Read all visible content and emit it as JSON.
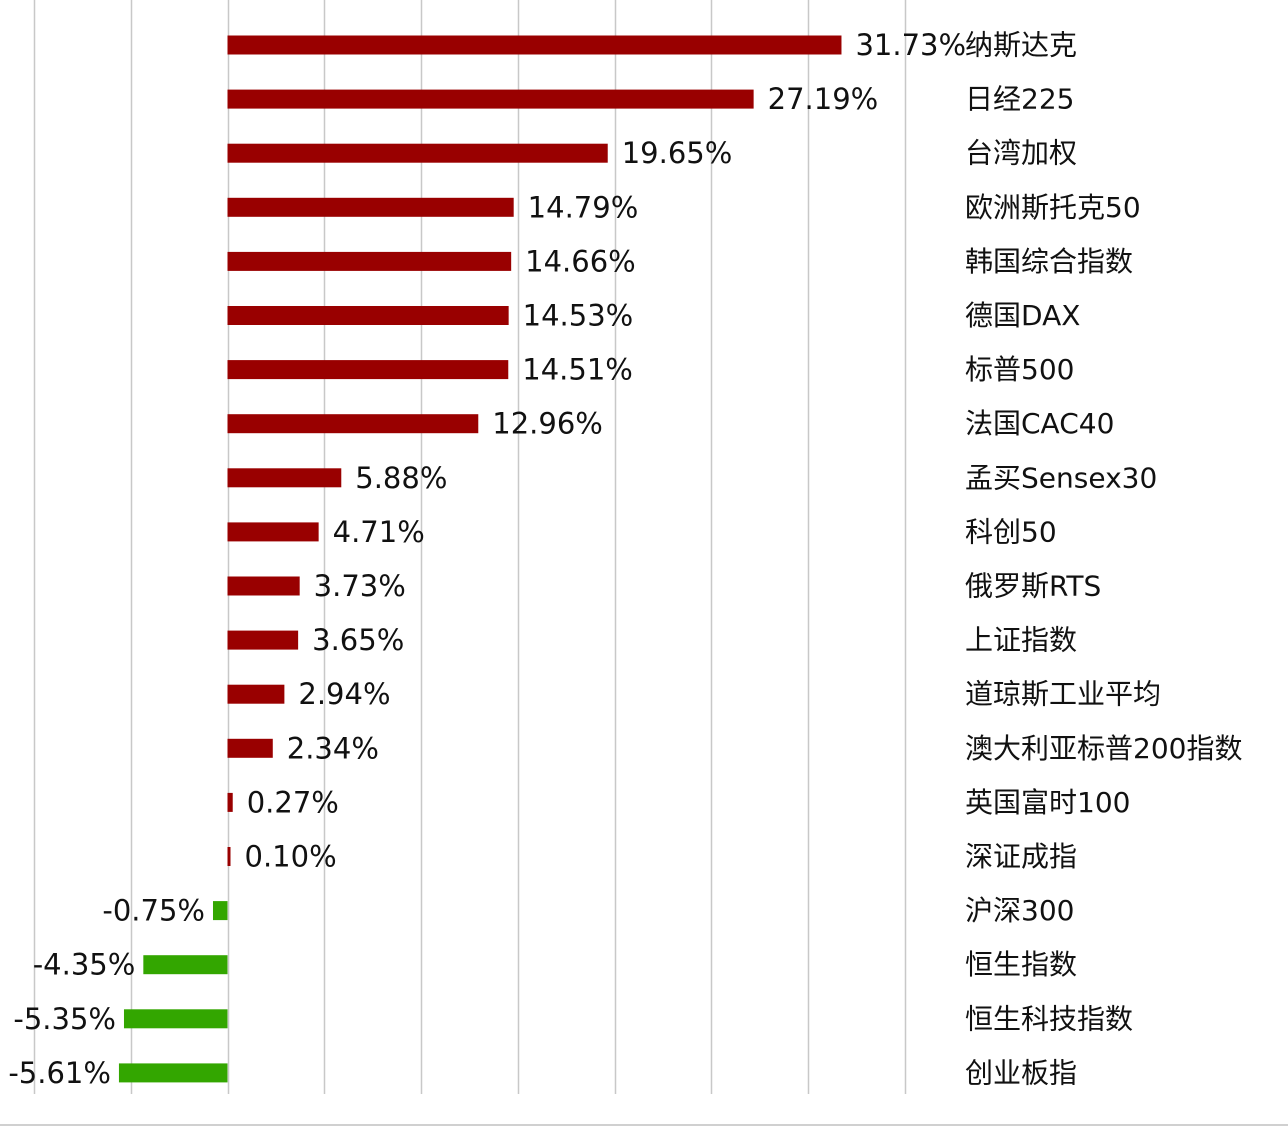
{
  "chart_data": {
    "type": "bar",
    "orientation": "horizontal",
    "categories": [
      "纳斯达克",
      "日经225",
      "台湾加权",
      "欧洲斯托克50",
      "韩国综合指数",
      "德国DAX",
      "标普500",
      "法国CAC40",
      "孟买Sensex30",
      "科创50",
      "俄罗斯RTS",
      "上证指数",
      "道琼斯工业平均",
      "澳大利亚标普200指数",
      "英国富时100",
      "深证成指",
      "沪深300",
      "恒生指数",
      "恒生科技指数",
      "创业板指"
    ],
    "values": [
      31.73,
      27.19,
      19.65,
      14.79,
      14.66,
      14.53,
      14.51,
      12.96,
      5.88,
      4.71,
      3.73,
      3.65,
      2.94,
      2.34,
      0.27,
      0.1,
      -0.75,
      -4.35,
      -5.35,
      -5.61
    ],
    "labels": [
      "31.73%",
      "27.19%",
      "19.65%",
      "14.79%",
      "14.66%",
      "14.53%",
      "14.51%",
      "12.96%",
      "5.88%",
      "4.71%",
      "3.73%",
      "3.65%",
      "2.94%",
      "2.34%",
      "0.27%",
      "0.10%",
      "-0.75%",
      "-4.35%",
      "-5.35%",
      "-5.61%"
    ],
    "xlim": [
      -10,
      35
    ],
    "grid": true,
    "legend": "none",
    "colors": {
      "positive": "#990000",
      "negative": "#33a600",
      "grid": "#c8c8c8",
      "text": "#111111"
    }
  }
}
